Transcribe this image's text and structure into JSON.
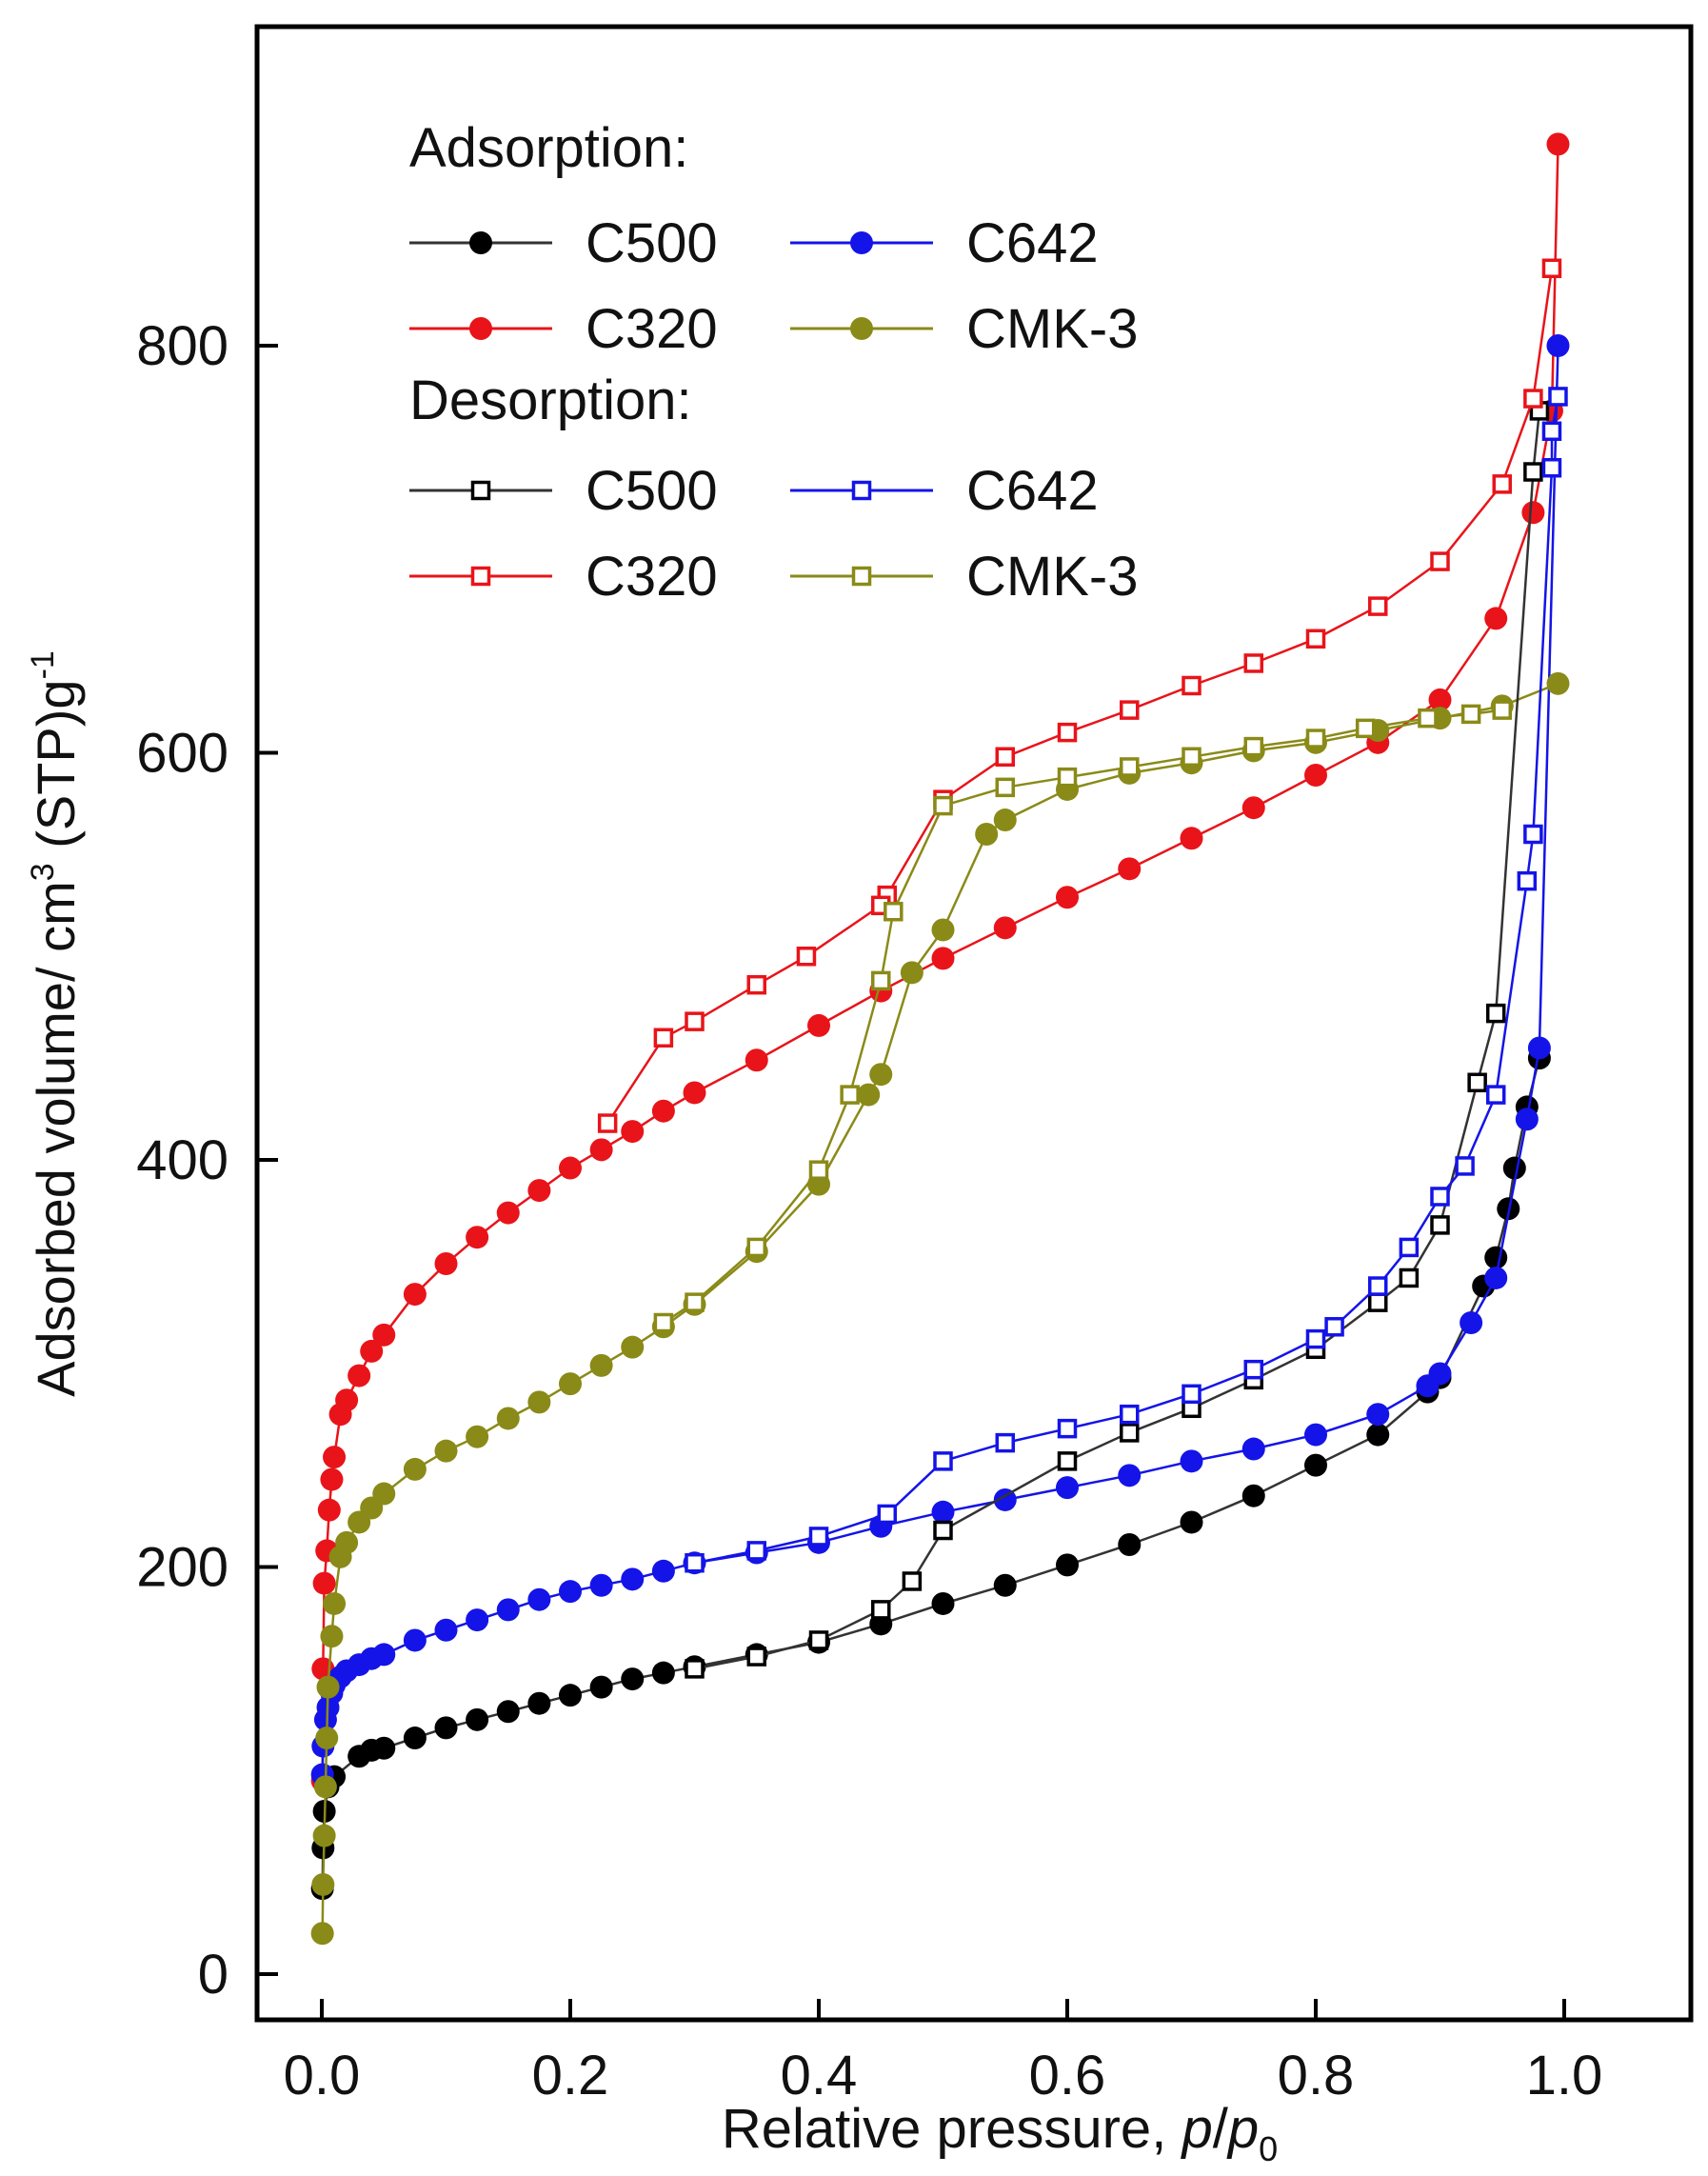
{
  "chart_data": {
    "type": "scatter",
    "title": "",
    "xlabel": "Relative pressure,",
    "xlabel_var_p": "p",
    "xlabel_slash": "/",
    "xlabel_var_p0": "p",
    "xlabel_sub": "0",
    "ylabel": "Adsorbed volume/ cm",
    "ylabel_sup3": "3",
    "ylabel_mid": " (STP)g",
    "ylabel_supm1": "-1",
    "xlim": [
      -0.05,
      1.15
    ],
    "ylim": [
      -30,
      960
    ],
    "xticks": [
      0.0,
      0.2,
      0.4,
      0.6,
      0.8,
      1.0
    ],
    "xtick_labels": [
      "0.0",
      "0.2",
      "0.4",
      "0.6",
      "0.8",
      "1.0"
    ],
    "yticks": [
      0,
      200,
      400,
      600,
      800
    ],
    "ytick_labels": [
      "0",
      "200",
      "400",
      "600",
      "800"
    ],
    "legend": {
      "adsorption_title": "Adsorption:",
      "desorption_title": "Desorption:",
      "placement": "top-left"
    },
    "series": [
      {
        "name": "C500",
        "branch": "adsorption",
        "marker": "filled-circle",
        "color": "#000000",
        "line_color": "#333333",
        "x": [
          0.0005,
          0.001,
          0.002,
          0.005,
          0.01,
          0.03,
          0.04,
          0.05,
          0.075,
          0.1,
          0.125,
          0.15,
          0.175,
          0.2,
          0.225,
          0.25,
          0.275,
          0.3,
          0.35,
          0.4,
          0.45,
          0.5,
          0.55,
          0.6,
          0.65,
          0.7,
          0.75,
          0.8,
          0.85,
          0.89,
          0.9,
          0.935,
          0.945,
          0.955,
          0.96,
          0.97,
          0.98
        ],
        "y": [
          42,
          62,
          80,
          92,
          97,
          107,
          110,
          111,
          116,
          121,
          125,
          129,
          133,
          137,
          141,
          145,
          148,
          151,
          157,
          163,
          172,
          182,
          191,
          201,
          211,
          222,
          235,
          250,
          265,
          286,
          293,
          338,
          352,
          376,
          396,
          426,
          450
        ]
      },
      {
        "name": "C320",
        "branch": "adsorption",
        "marker": "filled-circle",
        "color": "#e8141a",
        "line_color": "#e8141a",
        "x": [
          0.0005,
          0.001,
          0.002,
          0.004,
          0.006,
          0.008,
          0.01,
          0.015,
          0.02,
          0.03,
          0.04,
          0.05,
          0.075,
          0.1,
          0.125,
          0.15,
          0.175,
          0.2,
          0.225,
          0.25,
          0.275,
          0.3,
          0.35,
          0.4,
          0.45,
          0.5,
          0.55,
          0.6,
          0.65,
          0.7,
          0.75,
          0.8,
          0.85,
          0.9,
          0.945,
          0.975,
          0.99,
          0.995
        ],
        "y": [
          95,
          150,
          192,
          208,
          228,
          243,
          254,
          275,
          282,
          294,
          306,
          314,
          334,
          349,
          362,
          374,
          385,
          396,
          405,
          414,
          424,
          433,
          449,
          466,
          483,
          499,
          514,
          529,
          543,
          558,
          573,
          589,
          605,
          626,
          666,
          718,
          768,
          899
        ]
      },
      {
        "name": "C642",
        "branch": "adsorption",
        "marker": "filled-circle",
        "color": "#1414e8",
        "line_color": "#1414e8",
        "x": [
          0.0005,
          0.001,
          0.003,
          0.005,
          0.008,
          0.01,
          0.015,
          0.02,
          0.03,
          0.04,
          0.05,
          0.075,
          0.1,
          0.125,
          0.15,
          0.175,
          0.2,
          0.225,
          0.25,
          0.275,
          0.3,
          0.35,
          0.4,
          0.45,
          0.5,
          0.55,
          0.6,
          0.65,
          0.7,
          0.75,
          0.8,
          0.85,
          0.89,
          0.9,
          0.925,
          0.945,
          0.97,
          0.98,
          0.995
        ],
        "y": [
          98,
          112,
          125,
          131,
          138,
          142,
          146,
          149,
          152,
          155,
          157,
          164,
          169,
          174,
          179,
          184,
          188,
          191,
          194,
          198,
          202,
          207,
          212,
          220,
          227,
          233,
          239,
          245,
          252,
          258,
          265,
          275,
          289,
          295,
          320,
          342,
          420,
          455,
          800
        ]
      },
      {
        "name": "CMK-3",
        "branch": "adsorption",
        "marker": "filled-circle",
        "color": "#8a8a18",
        "line_color": "#8a8a18",
        "x": [
          0.0005,
          0.001,
          0.002,
          0.003,
          0.004,
          0.005,
          0.008,
          0.01,
          0.015,
          0.02,
          0.03,
          0.04,
          0.05,
          0.075,
          0.1,
          0.125,
          0.15,
          0.175,
          0.2,
          0.225,
          0.25,
          0.275,
          0.3,
          0.35,
          0.4,
          0.44,
          0.45,
          0.475,
          0.5,
          0.535,
          0.55,
          0.6,
          0.65,
          0.7,
          0.75,
          0.8,
          0.85,
          0.9,
          0.95,
          0.995
        ],
        "y": [
          20,
          44,
          68,
          92,
          116,
          141,
          166,
          182,
          205,
          212,
          222,
          229,
          236,
          248,
          257,
          264,
          273,
          281,
          290,
          299,
          308,
          318,
          329,
          355,
          388,
          432,
          442,
          492,
          513,
          560,
          567,
          582,
          590,
          595,
          601,
          605,
          611,
          617,
          623,
          634
        ]
      },
      {
        "name": "C500",
        "branch": "desorption",
        "marker": "open-square",
        "color": "#000000",
        "line_color": "#333333",
        "x": [
          0.98,
          0.975,
          0.945,
          0.93,
          0.9,
          0.875,
          0.85,
          0.8,
          0.75,
          0.7,
          0.65,
          0.6,
          0.5,
          0.475,
          0.45,
          0.4,
          0.35,
          0.3
        ],
        "y": [
          768,
          738,
          472,
          438,
          368,
          342,
          330,
          307,
          292,
          278,
          266,
          252,
          218,
          193,
          179,
          164,
          156,
          150
        ]
      },
      {
        "name": "C320",
        "branch": "desorption",
        "marker": "open-square",
        "color": "#e8141a",
        "line_color": "#e8141a",
        "x": [
          0.99,
          0.975,
          0.95,
          0.9,
          0.85,
          0.8,
          0.75,
          0.7,
          0.65,
          0.6,
          0.55,
          0.5,
          0.455,
          0.45,
          0.39,
          0.35,
          0.3,
          0.275,
          0.23
        ],
        "y": [
          838,
          774,
          732,
          694,
          672,
          656,
          644,
          633,
          621,
          610,
          598,
          577,
          530,
          525,
          500,
          486,
          468,
          460,
          418
        ]
      },
      {
        "name": "C642",
        "branch": "desorption",
        "marker": "open-square",
        "color": "#1414e8",
        "line_color": "#1414e8",
        "x": [
          0.995,
          0.99,
          0.99,
          0.975,
          0.97,
          0.945,
          0.92,
          0.9,
          0.875,
          0.85,
          0.815,
          0.8,
          0.75,
          0.7,
          0.65,
          0.6,
          0.55,
          0.5,
          0.455,
          0.4,
          0.35,
          0.3
        ],
        "y": [
          775,
          758,
          740,
          560,
          537,
          432,
          397,
          382,
          357,
          338,
          318,
          312,
          297,
          285,
          275,
          268,
          261,
          252,
          226,
          215,
          208,
          202
        ]
      },
      {
        "name": "CMK-3",
        "branch": "desorption",
        "marker": "open-square",
        "color": "#8a8a18",
        "line_color": "#8a8a18",
        "x": [
          0.95,
          0.925,
          0.89,
          0.84,
          0.8,
          0.75,
          0.7,
          0.65,
          0.6,
          0.55,
          0.5,
          0.46,
          0.45,
          0.425,
          0.4,
          0.35,
          0.3,
          0.275
        ],
        "y": [
          621,
          619,
          617,
          612,
          607,
          603,
          598,
          593,
          588,
          583,
          574,
          522,
          488,
          432,
          395,
          357,
          330,
          320
        ]
      }
    ]
  }
}
